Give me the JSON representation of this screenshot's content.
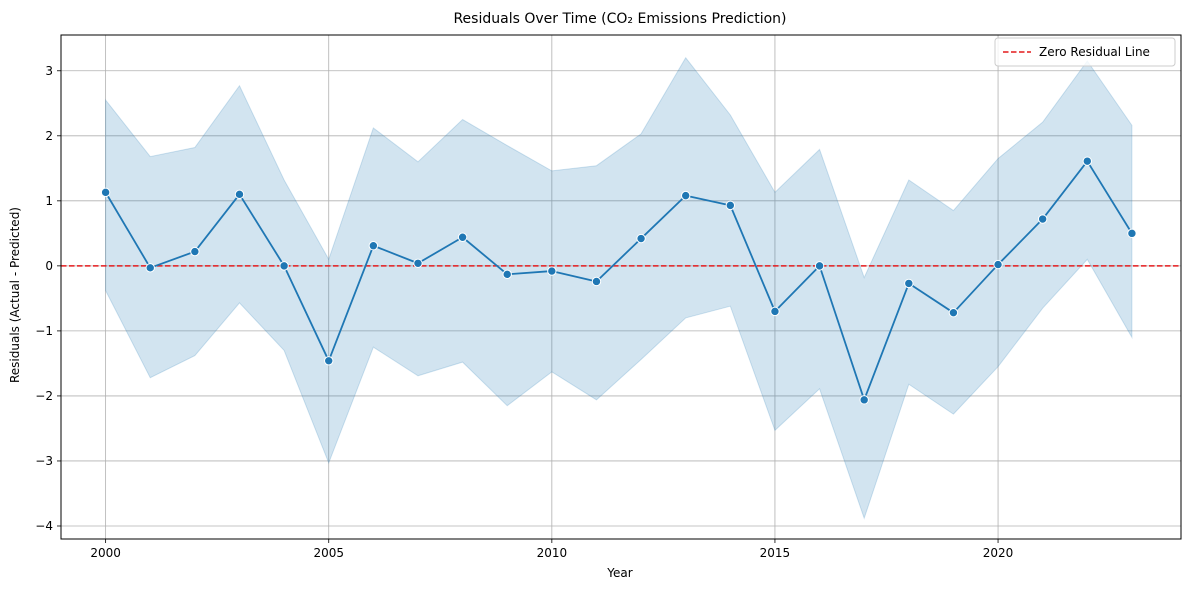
{
  "chart_data": {
    "type": "line",
    "title": "Residuals Over Time (CO₂ Emissions Prediction)",
    "xlabel": "Year",
    "ylabel": "Residuals (Actual - Predicted)",
    "xlim": [
      1999.0,
      2024.1
    ],
    "ylim": [
      -4.2,
      3.55
    ],
    "xticks": [
      2000,
      2005,
      2010,
      2015,
      2020
    ],
    "yticks": [
      -4,
      -3,
      -2,
      -1,
      0,
      1,
      2,
      3
    ],
    "x": [
      2000,
      2001,
      2002,
      2003,
      2004,
      2005,
      2006,
      2007,
      2008,
      2009,
      2010,
      2011,
      2012,
      2013,
      2014,
      2015,
      2016,
      2017,
      2018,
      2019,
      2020,
      2021,
      2022,
      2023
    ],
    "series": [
      {
        "values": [
          1.13,
          -0.03,
          0.22,
          1.1,
          0.0,
          -1.46,
          0.31,
          0.04,
          0.44,
          -0.13,
          -0.08,
          -0.24,
          0.42,
          1.08,
          0.93,
          -0.7,
          0.0,
          -2.06,
          -0.27,
          -0.72,
          0.02,
          0.72,
          1.61,
          0.5
        ],
        "ci_upper": [
          2.55,
          1.68,
          1.82,
          2.77,
          1.32,
          0.1,
          2.12,
          1.6,
          2.25,
          1.85,
          1.46,
          1.54,
          2.03,
          3.2,
          2.32,
          1.13,
          1.79,
          -0.18,
          1.32,
          0.85,
          1.65,
          2.21,
          3.15,
          2.16
        ],
        "ci_lower": [
          -0.38,
          -1.72,
          -1.38,
          -0.57,
          -1.3,
          -3.03,
          -1.25,
          -1.69,
          -1.48,
          -2.15,
          -1.63,
          -2.06,
          -1.44,
          -0.8,
          -0.62,
          -2.53,
          -1.89,
          -3.88,
          -1.82,
          -2.28,
          -1.55,
          -0.65,
          0.1,
          -1.1
        ],
        "color": "#1f77b4"
      }
    ],
    "reference_line": {
      "y": 0,
      "label": "Zero Residual Line",
      "color": "#e41a1c",
      "style": "dashed"
    },
    "grid": true,
    "legend_position": "top-right"
  }
}
